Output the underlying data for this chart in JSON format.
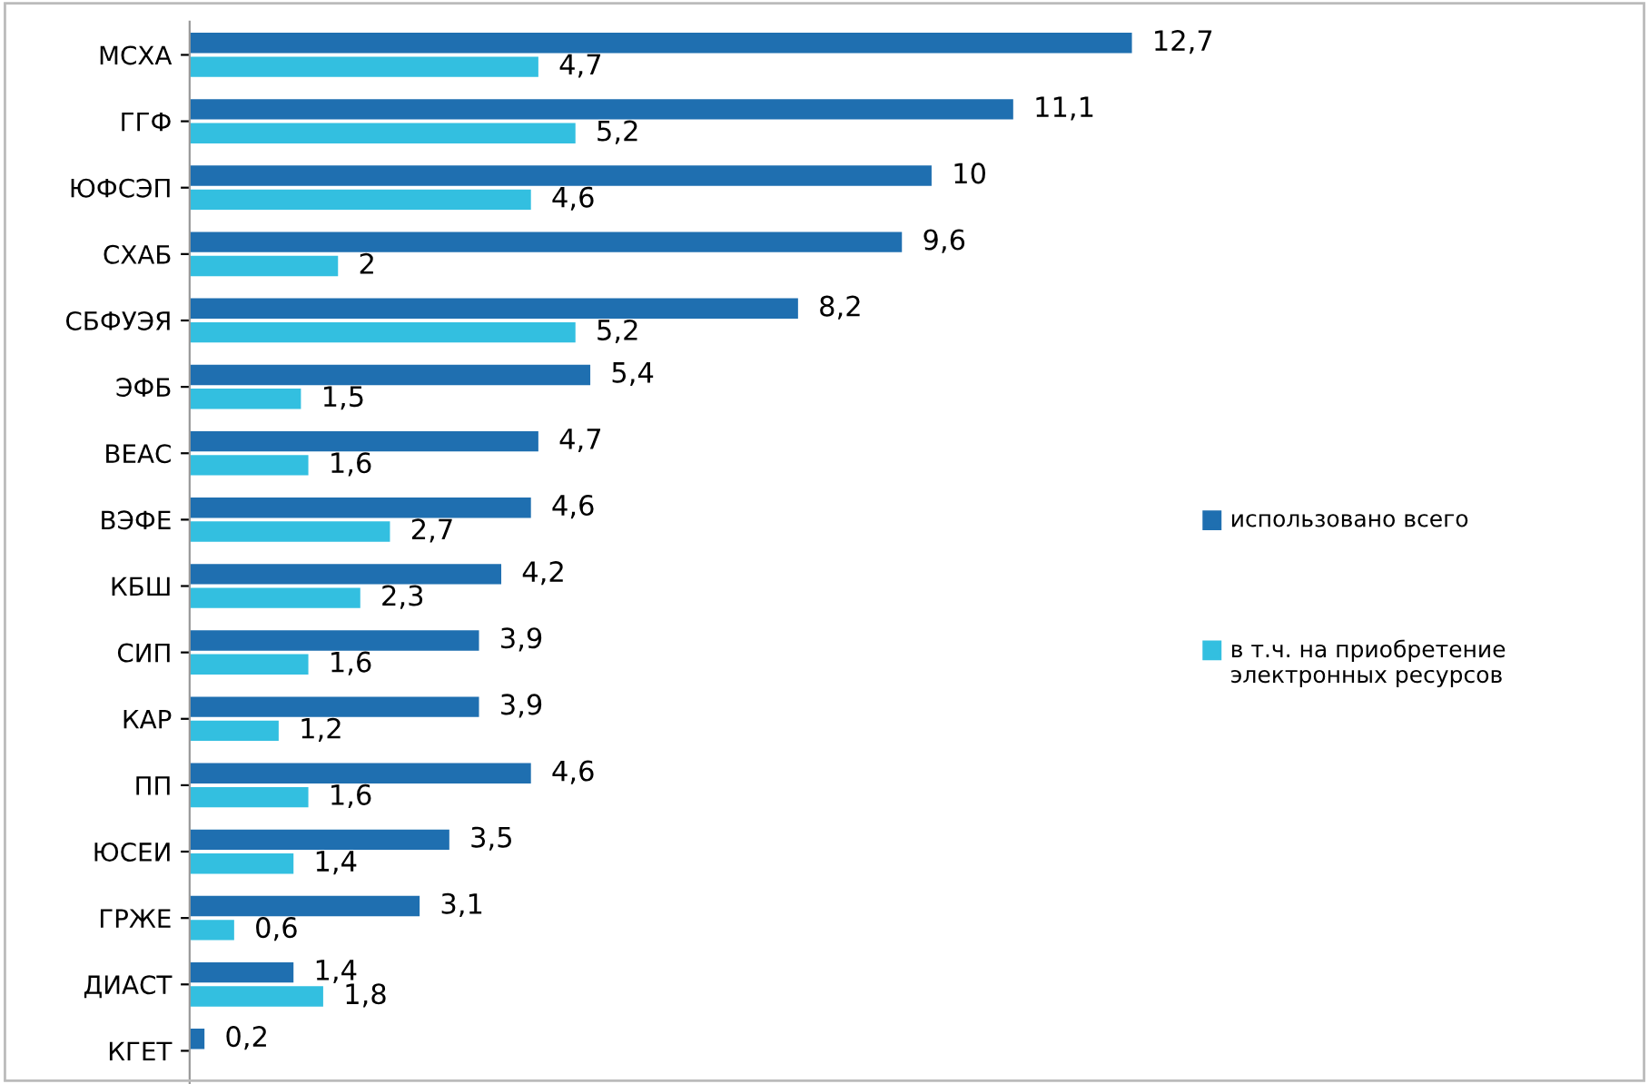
{
  "chart_data": {
    "type": "bar",
    "orientation": "horizontal",
    "categories": [
      "МСХА",
      "ГГФ",
      "ЮФСЭП",
      "СХАБ",
      "СБФУЭЯ",
      "ЭФБ",
      "ВЕАС",
      "ВЭФЕ",
      "КБШ",
      "СИП",
      "КАР",
      "ПП",
      "ЮСЕИ",
      "ГРЖЕ",
      "ДИАСТ",
      "КГЕТ"
    ],
    "series": [
      {
        "name": "использовано всего",
        "color": "#1f6fb0",
        "values": [
          12.7,
          11.1,
          10,
          9.6,
          8.2,
          5.4,
          4.7,
          4.6,
          4.2,
          3.9,
          3.9,
          4.6,
          3.5,
          3.1,
          1.4,
          0.2
        ],
        "value_labels": [
          "12,7",
          "11,1",
          "10",
          "9,6",
          "8,2",
          "5,4",
          "4,7",
          "4,6",
          "4,2",
          "3,9",
          "3,9",
          "4,6",
          "3,5",
          "3,1",
          "1,4",
          "0,2"
        ]
      },
      {
        "name": "в т.ч. на приобретение электронных ресурсов",
        "color": "#33bfe0",
        "values": [
          4.7,
          5.2,
          4.6,
          2,
          5.2,
          1.5,
          1.6,
          2.7,
          2.3,
          1.6,
          1.2,
          1.6,
          1.4,
          0.6,
          1.8,
          null
        ],
        "value_labels": [
          "4,7",
          "5,2",
          "4,6",
          "2",
          "5,2",
          "1,5",
          "1,6",
          "2,7",
          "2,3",
          "1,6",
          "1,2",
          "1,6",
          "1,4",
          "0,6",
          "1,8",
          null
        ]
      }
    ],
    "tick_labels": "y",
    "legend": "right",
    "grid": false
  }
}
